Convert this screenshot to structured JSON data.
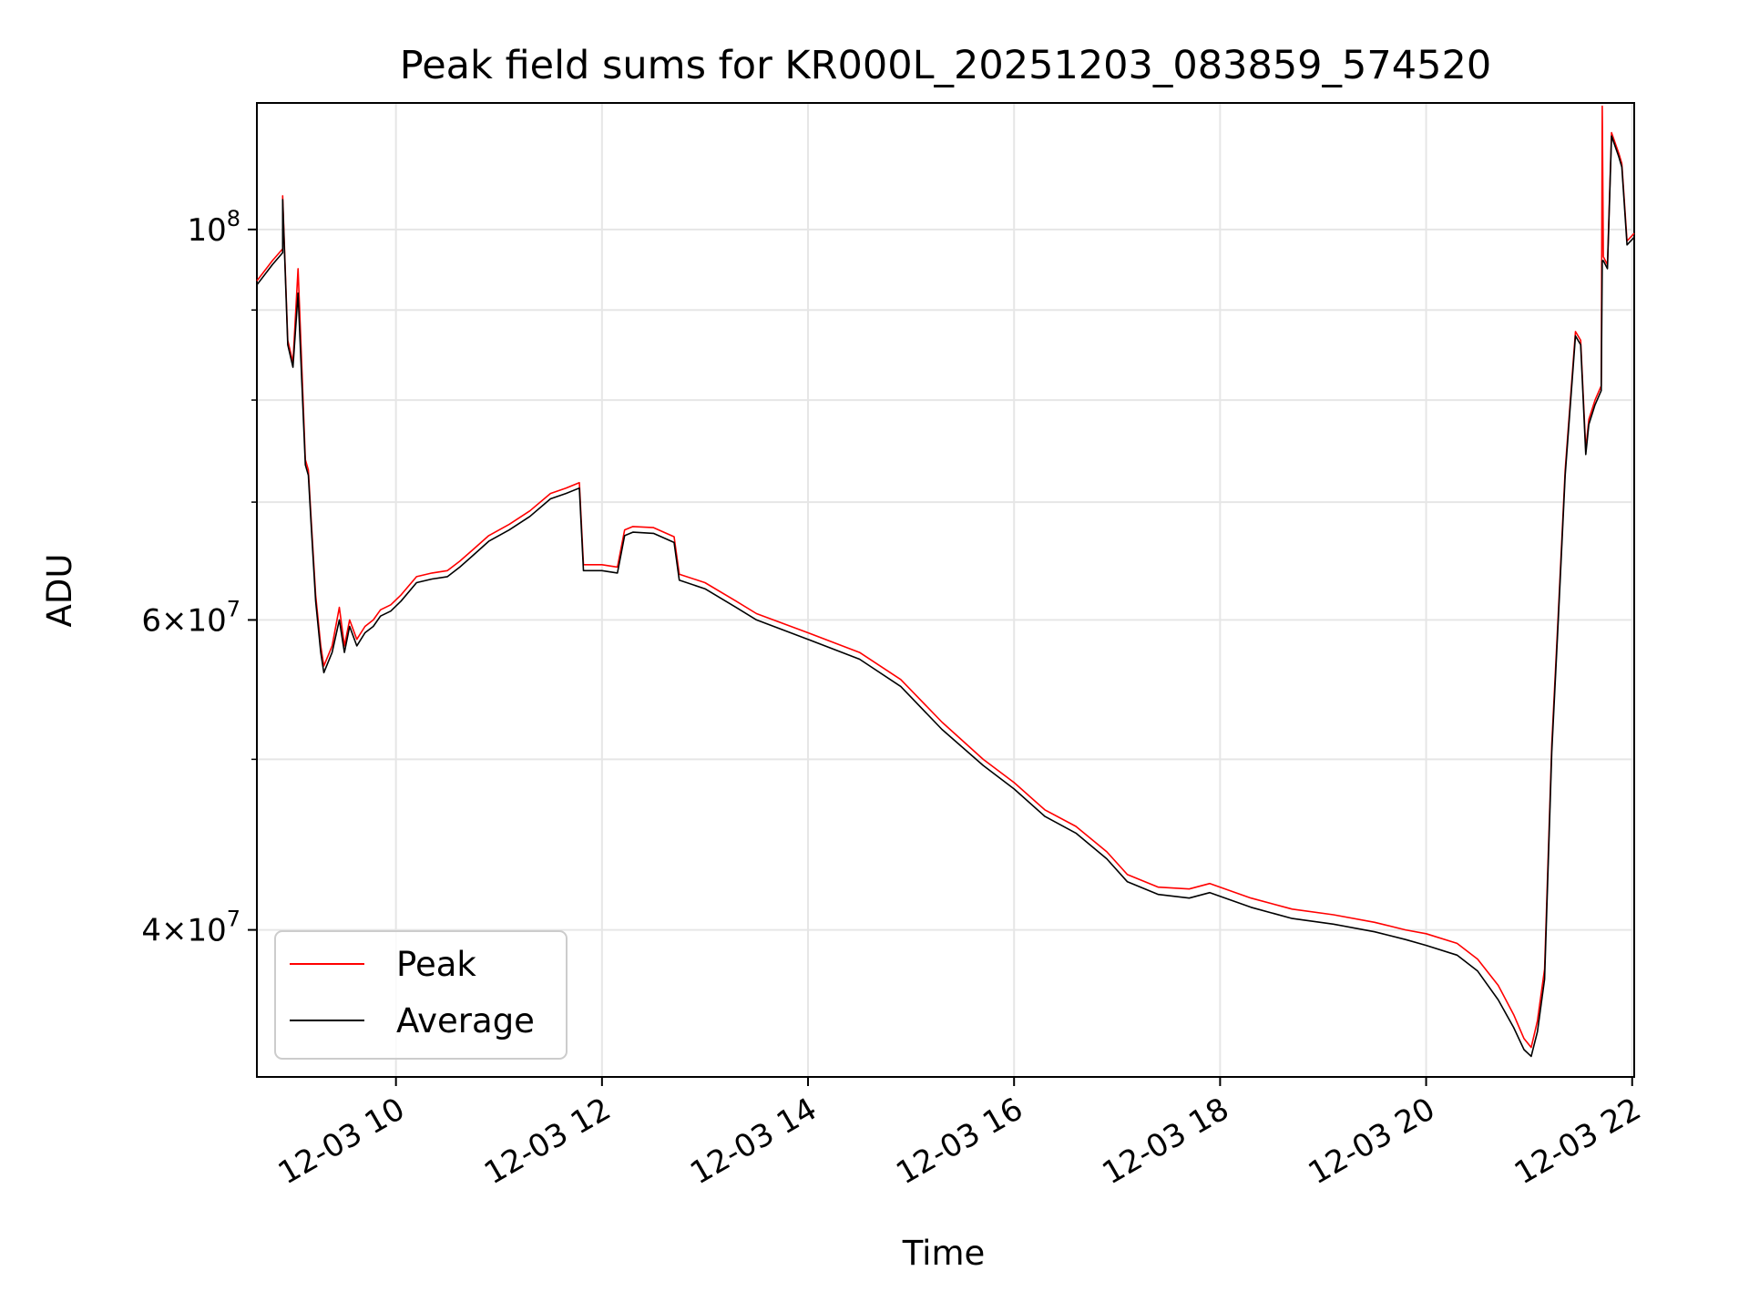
{
  "chart_data": {
    "type": "line",
    "title": "Peak field sums for KR000L_20251203_083859_574520",
    "xlabel": "Time",
    "ylabel": "ADU",
    "yscale": "log",
    "ylim": [
      33000000,
      118000000
    ],
    "xlim_hours": [
      8.65,
      22.02
    ],
    "grid": true,
    "legend_position": "lower-left",
    "x_ticks": [
      {
        "label": "12-03 10",
        "hour": 10
      },
      {
        "label": "12-03 12",
        "hour": 12
      },
      {
        "label": "12-03 14",
        "hour": 14
      },
      {
        "label": "12-03 16",
        "hour": 16
      },
      {
        "label": "12-03 18",
        "hour": 18
      },
      {
        "label": "12-03 20",
        "hour": 20
      },
      {
        "label": "12-03 22",
        "hour": 22
      }
    ],
    "y_ticks_major": [
      {
        "value": 40000000,
        "mantissa": "4",
        "exponent": "7"
      },
      {
        "value": 60000000,
        "mantissa": "6",
        "exponent": "7"
      },
      {
        "value": 100000000,
        "mantissa": "",
        "exponent": "8"
      }
    ],
    "y_ticks_minor": [
      50000000,
      70000000,
      80000000,
      90000000
    ],
    "series": [
      {
        "name": "Peak",
        "color": "#ff0000",
        "x_hours": [
          8.65,
          8.8,
          8.9,
          8.9,
          8.95,
          9.0,
          9.05,
          9.12,
          9.15,
          9.18,
          9.22,
          9.27,
          9.3,
          9.38,
          9.45,
          9.5,
          9.55,
          9.62,
          9.7,
          9.78,
          9.85,
          9.95,
          10.05,
          10.2,
          10.35,
          10.5,
          10.62,
          10.75,
          10.9,
          11.1,
          11.3,
          11.5,
          11.65,
          11.78,
          11.82,
          12.0,
          12.15,
          12.22,
          12.3,
          12.5,
          12.7,
          12.75,
          13.0,
          13.3,
          13.5,
          14.0,
          14.5,
          14.9,
          15.3,
          15.7,
          16.0,
          16.3,
          16.6,
          16.9,
          17.1,
          17.4,
          17.7,
          17.9,
          18.3,
          18.7,
          19.1,
          19.5,
          19.8,
          20.0,
          20.3,
          20.5,
          20.7,
          20.85,
          20.95,
          21.02,
          21.08,
          21.15,
          21.22,
          21.28,
          21.35,
          21.4,
          21.45,
          21.5,
          21.55,
          21.58,
          21.64,
          21.7,
          21.71,
          21.72,
          21.76,
          21.8,
          21.87,
          21.9,
          21.95,
          22.02
        ],
        "values": [
          93500000,
          96000000,
          97500000,
          104500000,
          86500000,
          84000000,
          95000000,
          74000000,
          73000000,
          68000000,
          62000000,
          58000000,
          56500000,
          58000000,
          61000000,
          58000000,
          60000000,
          58500000,
          59500000,
          60000000,
          60800000,
          61200000,
          62000000,
          63500000,
          63800000,
          64000000,
          64800000,
          65800000,
          67000000,
          68000000,
          69200000,
          70800000,
          71300000,
          71800000,
          64500000,
          64500000,
          64300000,
          67500000,
          67800000,
          67700000,
          66900000,
          63700000,
          63000000,
          61500000,
          60500000,
          59000000,
          57500000,
          55500000,
          52500000,
          50000000,
          48500000,
          46800000,
          45800000,
          44300000,
          43000000,
          42300000,
          42200000,
          42500000,
          41700000,
          41100000,
          40800000,
          40400000,
          40000000,
          39800000,
          39300000,
          38500000,
          37200000,
          35800000,
          34700000,
          34300000,
          35500000,
          38000000,
          51000000,
          60000000,
          73000000,
          80000000,
          87500000,
          86500000,
          75000000,
          78000000,
          80000000,
          81500000,
          117500000,
          96500000,
          95500000,
          113500000,
          110500000,
          109000000,
          98500000,
          99500000
        ]
      },
      {
        "name": "Average",
        "color": "#000000",
        "x_hours": [
          8.65,
          8.8,
          8.9,
          8.9,
          8.95,
          9.0,
          9.05,
          9.12,
          9.15,
          9.18,
          9.22,
          9.27,
          9.3,
          9.38,
          9.45,
          9.5,
          9.55,
          9.62,
          9.7,
          9.78,
          9.85,
          9.95,
          10.05,
          10.2,
          10.35,
          10.5,
          10.62,
          10.75,
          10.9,
          11.1,
          11.3,
          11.5,
          11.65,
          11.78,
          11.82,
          12.0,
          12.15,
          12.22,
          12.3,
          12.5,
          12.7,
          12.75,
          13.0,
          13.3,
          13.5,
          14.0,
          14.5,
          14.9,
          15.3,
          15.7,
          16.0,
          16.3,
          16.6,
          16.9,
          17.1,
          17.4,
          17.7,
          17.9,
          18.3,
          18.7,
          19.1,
          19.5,
          19.8,
          20.0,
          20.3,
          20.5,
          20.7,
          20.85,
          20.95,
          21.02,
          21.08,
          21.15,
          21.22,
          21.28,
          21.35,
          21.4,
          21.45,
          21.5,
          21.55,
          21.58,
          21.64,
          21.7,
          21.71,
          21.72,
          21.76,
          21.8,
          21.87,
          21.9,
          21.95,
          22.02
        ],
        "values": [
          93000000,
          95500000,
          97000000,
          104000000,
          86000000,
          83500000,
          92000000,
          73500000,
          72500000,
          67500000,
          61500000,
          57500000,
          56000000,
          57500000,
          60000000,
          57500000,
          59500000,
          58000000,
          59000000,
          59500000,
          60300000,
          60700000,
          61500000,
          63000000,
          63300000,
          63500000,
          64300000,
          65300000,
          66500000,
          67500000,
          68700000,
          70300000,
          70800000,
          71300000,
          64000000,
          64000000,
          63800000,
          67000000,
          67300000,
          67200000,
          66400000,
          63200000,
          62500000,
          61000000,
          60000000,
          58500000,
          57000000,
          55000000,
          52000000,
          49600000,
          48100000,
          46400000,
          45400000,
          43900000,
          42600000,
          41900000,
          41700000,
          42000000,
          41200000,
          40600000,
          40300000,
          39900000,
          39500000,
          39200000,
          38700000,
          37900000,
          36500000,
          35200000,
          34200000,
          33900000,
          35000000,
          37500000,
          50500000,
          59500000,
          72500000,
          79500000,
          87000000,
          86000000,
          74500000,
          77500000,
          79500000,
          81000000,
          96000000,
          96000000,
          95000000,
          113000000,
          110000000,
          108500000,
          98000000,
          99000000
        ]
      }
    ]
  }
}
